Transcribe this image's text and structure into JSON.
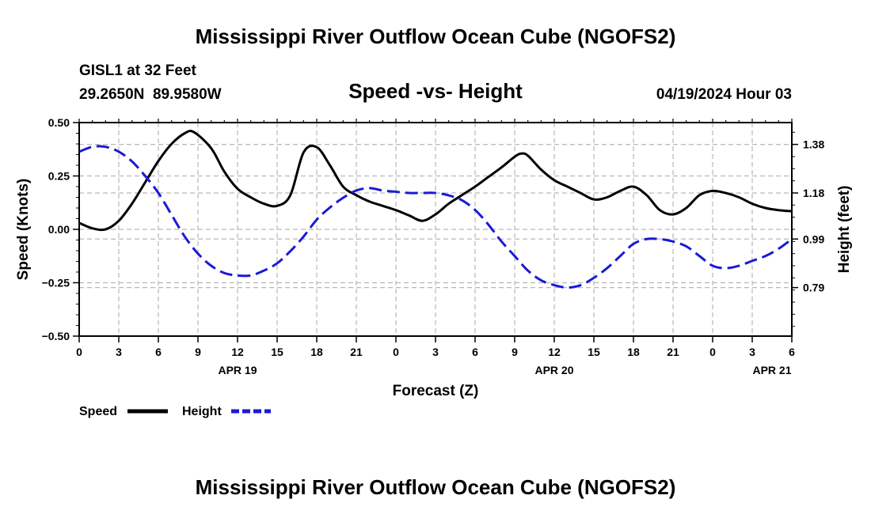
{
  "page_title": "Mississippi River Outflow Ocean Cube (NGOFS2)",
  "station": {
    "name": "GISL1 at 32 Feet",
    "coords": "29.2650N  89.9580W",
    "datetime": "04/19/2024 Hour 03"
  },
  "footer_title": "Mississippi River Outflow Ocean Cube (NGOFS2)",
  "colors": {
    "speed": "#000000",
    "height": "#1a1ad6",
    "grid": "#b8b8b8"
  },
  "chart_data": {
    "type": "line",
    "title": "Speed -vs- Height",
    "xlabel": "Forecast (Z)",
    "ylabel": "Speed (Knots)",
    "y2label": "Height (feet)",
    "xlim": [
      0,
      54
    ],
    "ylim": [
      -0.5,
      0.5
    ],
    "y2lim": [
      0.59,
      1.47
    ],
    "x_ticks": [
      0,
      3,
      6,
      9,
      12,
      15,
      18,
      21,
      24,
      27,
      30,
      33,
      36,
      39,
      42,
      45,
      48,
      51,
      54
    ],
    "x_tick_labels": [
      "0",
      "3",
      "6",
      "9",
      "12",
      "15",
      "18",
      "21",
      "0",
      "3",
      "6",
      "9",
      "12",
      "15",
      "18",
      "21",
      "0",
      "3",
      "6"
    ],
    "date_labels": [
      {
        "x": 12,
        "label": "APR 19"
      },
      {
        "x": 36,
        "label": "APR 20"
      },
      {
        "x": 52.5,
        "label": "APR 21"
      }
    ],
    "y_ticks": [
      -0.5,
      -0.25,
      0.0,
      0.25,
      0.5
    ],
    "y_tick_labels": [
      "−0.50",
      "−0.25",
      "0.00",
      "0.25",
      "0.50"
    ],
    "y2_ticks": [
      0.79,
      0.99,
      1.18,
      1.38
    ],
    "y2_tick_labels": [
      "0.79",
      "0.99",
      "1.18",
      "1.38"
    ],
    "legend": [
      {
        "name": "Speed",
        "style": "solid"
      },
      {
        "name": "Height",
        "style": "dashed"
      }
    ],
    "series": [
      {
        "name": "Speed",
        "axis": "left",
        "style": "solid",
        "x": [
          0,
          1,
          2,
          3,
          4,
          5,
          6,
          7,
          8,
          8.7,
          10,
          11,
          12,
          13,
          14,
          15,
          16,
          17,
          18,
          19,
          20,
          21,
          22,
          23,
          24,
          25,
          26,
          27,
          28,
          29,
          30,
          31,
          32,
          33,
          33.5,
          34,
          35,
          36,
          37,
          38,
          39,
          40,
          41,
          42,
          43,
          44,
          45,
          46,
          47,
          48,
          49,
          50,
          51,
          52,
          53,
          54
        ],
        "values": [
          0.03,
          0.005,
          0.0,
          0.04,
          0.12,
          0.22,
          0.32,
          0.4,
          0.45,
          0.455,
          0.38,
          0.27,
          0.19,
          0.15,
          0.12,
          0.11,
          0.16,
          0.36,
          0.385,
          0.3,
          0.2,
          0.16,
          0.13,
          0.11,
          0.09,
          0.065,
          0.04,
          0.07,
          0.12,
          0.16,
          0.2,
          0.245,
          0.29,
          0.34,
          0.355,
          0.345,
          0.28,
          0.23,
          0.2,
          0.17,
          0.14,
          0.15,
          0.18,
          0.2,
          0.16,
          0.09,
          0.07,
          0.1,
          0.16,
          0.18,
          0.17,
          0.15,
          0.12,
          0.1,
          0.09,
          0.085
        ]
      },
      {
        "name": "Height",
        "axis": "right",
        "style": "dashed",
        "x": [
          0,
          1,
          2,
          3,
          4,
          5,
          6,
          7,
          8,
          9,
          10,
          11,
          12,
          13,
          14,
          15,
          16,
          17,
          18,
          19,
          20,
          21,
          22,
          23,
          24,
          25,
          26,
          27,
          28,
          29,
          30,
          31,
          32,
          33,
          34,
          35,
          36,
          37,
          38,
          39,
          40,
          41,
          42,
          43,
          44,
          45,
          46,
          47,
          48,
          49,
          50,
          51,
          52,
          53,
          54
        ],
        "values": [
          1.35,
          1.37,
          1.37,
          1.35,
          1.31,
          1.25,
          1.18,
          1.09,
          1.0,
          0.93,
          0.88,
          0.85,
          0.84,
          0.84,
          0.86,
          0.89,
          0.94,
          1.0,
          1.07,
          1.12,
          1.16,
          1.19,
          1.2,
          1.19,
          1.185,
          1.18,
          1.18,
          1.18,
          1.17,
          1.15,
          1.11,
          1.05,
          0.98,
          0.92,
          0.86,
          0.82,
          0.8,
          0.79,
          0.8,
          0.83,
          0.87,
          0.92,
          0.97,
          0.99,
          0.99,
          0.98,
          0.96,
          0.92,
          0.88,
          0.87,
          0.88,
          0.9,
          0.92,
          0.95,
          0.99
        ]
      }
    ]
  }
}
